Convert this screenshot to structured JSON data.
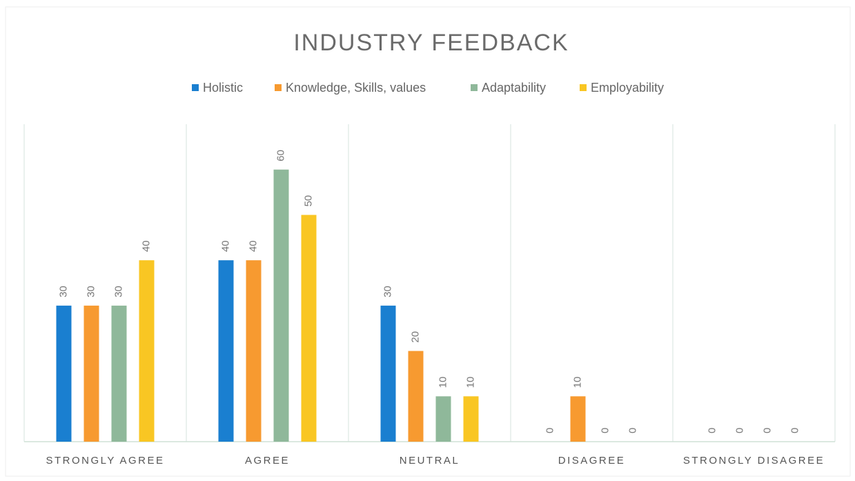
{
  "chart_data": {
    "type": "bar",
    "title": "INDUSTRY FEEDBACK",
    "categories": [
      "STRONGLY AGREE",
      "AGREE",
      "NEUTRAL",
      "DISAGREE",
      "STRONGLY DISAGREE"
    ],
    "series": [
      {
        "name": "Holistic",
        "color": "#1a7fd0",
        "values": [
          30,
          40,
          30,
          0,
          0
        ]
      },
      {
        "name": "Knowledge, Skills, values",
        "color": "#f79a30",
        "values": [
          30,
          40,
          20,
          10,
          0
        ]
      },
      {
        "name": "Adaptability",
        "color": "#8fb89a",
        "values": [
          30,
          60,
          10,
          0,
          0
        ]
      },
      {
        "name": "Employability",
        "color": "#f9c623",
        "values": [
          40,
          50,
          10,
          0,
          0
        ]
      }
    ],
    "ylim": [
      0,
      70
    ]
  }
}
